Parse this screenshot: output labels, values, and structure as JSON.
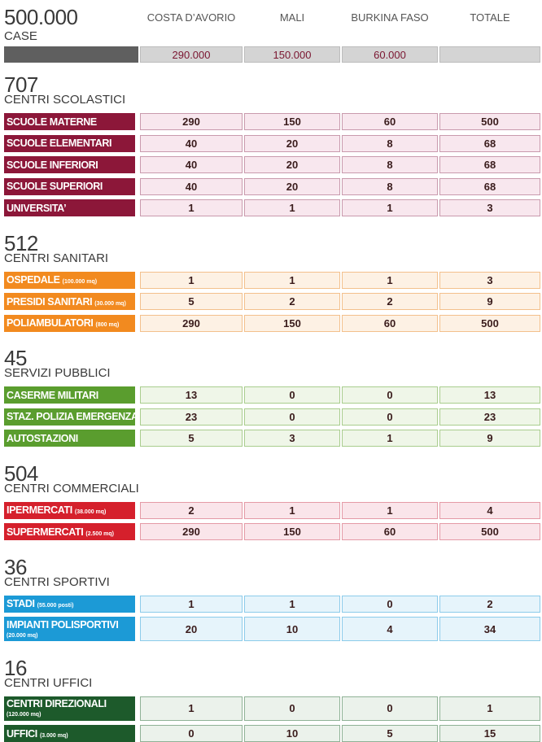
{
  "header": {
    "title": "500.000",
    "subtitle": "CASE",
    "columns": [
      "COSTA D’AVORIO",
      "MALI",
      "BURKINA FASO",
      "TOTALE"
    ],
    "values": [
      "290.000",
      "150.000",
      "60.000"
    ]
  },
  "sections": [
    {
      "number": "707",
      "title": "CENTRI SCOLASTICI",
      "color": "#8c1739",
      "cell_color": "#f8e7ee",
      "border_color": "#c99aad",
      "rows": [
        {
          "label": "SCUOLE MATERNE",
          "values": [
            290,
            150,
            60,
            500
          ]
        },
        {
          "label": "SCUOLE ELEMENTARI",
          "values": [
            40,
            20,
            8,
            68
          ]
        },
        {
          "label": "SCUOLE INFERIORI",
          "values": [
            40,
            20,
            8,
            68
          ]
        },
        {
          "label": "SCUOLE SUPERIORI",
          "values": [
            40,
            20,
            8,
            68
          ]
        },
        {
          "label": "UNIVERSITA’",
          "values": [
            1,
            1,
            1,
            3
          ]
        }
      ]
    },
    {
      "number": "512",
      "title": "CENTRI SANITARI",
      "color": "#f28a1f",
      "cell_color": "#fdf1e4",
      "border_color": "#f3c08c",
      "rows": [
        {
          "label": "OSPEDALE",
          "note": "(100.000 mq)",
          "values": [
            1,
            1,
            1,
            3
          ]
        },
        {
          "label": "PRESIDI SANITARI",
          "note": "(30.000 mq)",
          "values": [
            5,
            2,
            2,
            9
          ]
        },
        {
          "label": "POLIAMBULATORI",
          "note": "(800 mq)",
          "values": [
            290,
            150,
            60,
            500
          ]
        }
      ]
    },
    {
      "number": "45",
      "title": "SERVIZI PUBBLICI",
      "color": "#5a9d2e",
      "cell_color": "#eff6e8",
      "border_color": "#a9cd8e",
      "rows": [
        {
          "label": "CASERME MILITARI",
          "values": [
            13,
            0,
            0,
            13
          ]
        },
        {
          "label": "STAZ. POLIZIA EMERGENZA",
          "values": [
            23,
            0,
            0,
            23
          ]
        },
        {
          "label": "AUTOSTAZIONI",
          "values": [
            5,
            3,
            1,
            9
          ]
        }
      ]
    },
    {
      "number": "504",
      "title": "CENTRI COMMERCIALI",
      "color": "#d5202c",
      "cell_color": "#fae5ea",
      "border_color": "#e49aa6",
      "rows": [
        {
          "label": "IPERMERCATI",
          "note": "(38.000 mq)",
          "values": [
            2,
            1,
            1,
            4
          ]
        },
        {
          "label": "SUPERMERCATI",
          "note": "(2.500 mq)",
          "values": [
            290,
            150,
            60,
            500
          ]
        }
      ]
    },
    {
      "number": "36",
      "title": "CENTRI SPORTIVI",
      "color": "#1c9ad6",
      "cell_color": "#e6f4fb",
      "border_color": "#8ccbea",
      "rows": [
        {
          "label": "STADI",
          "note": "(55.000 posti)",
          "values": [
            1,
            1,
            0,
            2
          ]
        },
        {
          "label": "IMPIANTI POLISPORTIVI",
          "note": "(20.000 mq)",
          "values": [
            20,
            10,
            4,
            34
          ]
        }
      ]
    },
    {
      "number": "16",
      "title": "CENTRI UFFICI",
      "color": "#1d5a2b",
      "cell_color": "#ebf2eb",
      "border_color": "#8fb296",
      "rows": [
        {
          "label": "CENTRI DIREZIONALI",
          "note": "(120.000 mq)",
          "values": [
            1,
            0,
            0,
            1
          ]
        },
        {
          "label": "UFFICI",
          "note": "(3.000 mq)",
          "values": [
            0,
            10,
            5,
            15
          ]
        }
      ]
    }
  ]
}
